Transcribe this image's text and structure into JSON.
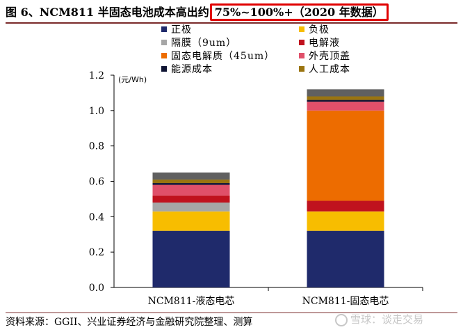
{
  "title": {
    "main": "图 6、NCM811 半固态电池成本高出约",
    "highlight": "75%~100%+（2020 年数据）"
  },
  "footer": {
    "source": "资料来源：GGII、兴业证券经济与金融研究院整理、测算"
  },
  "watermark": {
    "text": "雪球：谈走交易"
  },
  "chart_data": {
    "type": "bar",
    "stacked": true,
    "unit_label": "(元/Wh)",
    "categories": [
      "NCM811-液态电芯",
      "NCM811-固态电芯"
    ],
    "ylim": [
      0,
      1.2
    ],
    "yticks": [
      "0.0",
      "0.2",
      "0.4",
      "0.6",
      "0.8",
      "1.0",
      "1.2"
    ],
    "grid": false,
    "legend_position": "top",
    "series": [
      {
        "name": "正极",
        "color": "#1f2a6b",
        "values": [
          0.32,
          0.32
        ]
      },
      {
        "name": "负极",
        "color": "#f7bd00",
        "values": [
          0.11,
          0.11
        ]
      },
      {
        "name": "隔膜（9um）",
        "color": "#a6a6a6",
        "values": [
          0.05,
          0.0
        ]
      },
      {
        "name": "电解液",
        "color": "#c0121e",
        "values": [
          0.04,
          0.06
        ]
      },
      {
        "name": "固态电解质（45um）",
        "color": "#ed6c00",
        "values": [
          0.0,
          0.51
        ]
      },
      {
        "name": "外壳顶盖",
        "color": "#e0506a",
        "values": [
          0.06,
          0.05
        ]
      },
      {
        "name": "能源成本",
        "color": "#0f1433",
        "values": [
          0.01,
          0.01
        ]
      },
      {
        "name": "人工成本",
        "color": "#9a7410",
        "values": [
          0.02,
          0.02
        ]
      },
      {
        "name": "",
        "color": "#606060",
        "values": [
          0.04,
          0.04
        ]
      }
    ]
  }
}
